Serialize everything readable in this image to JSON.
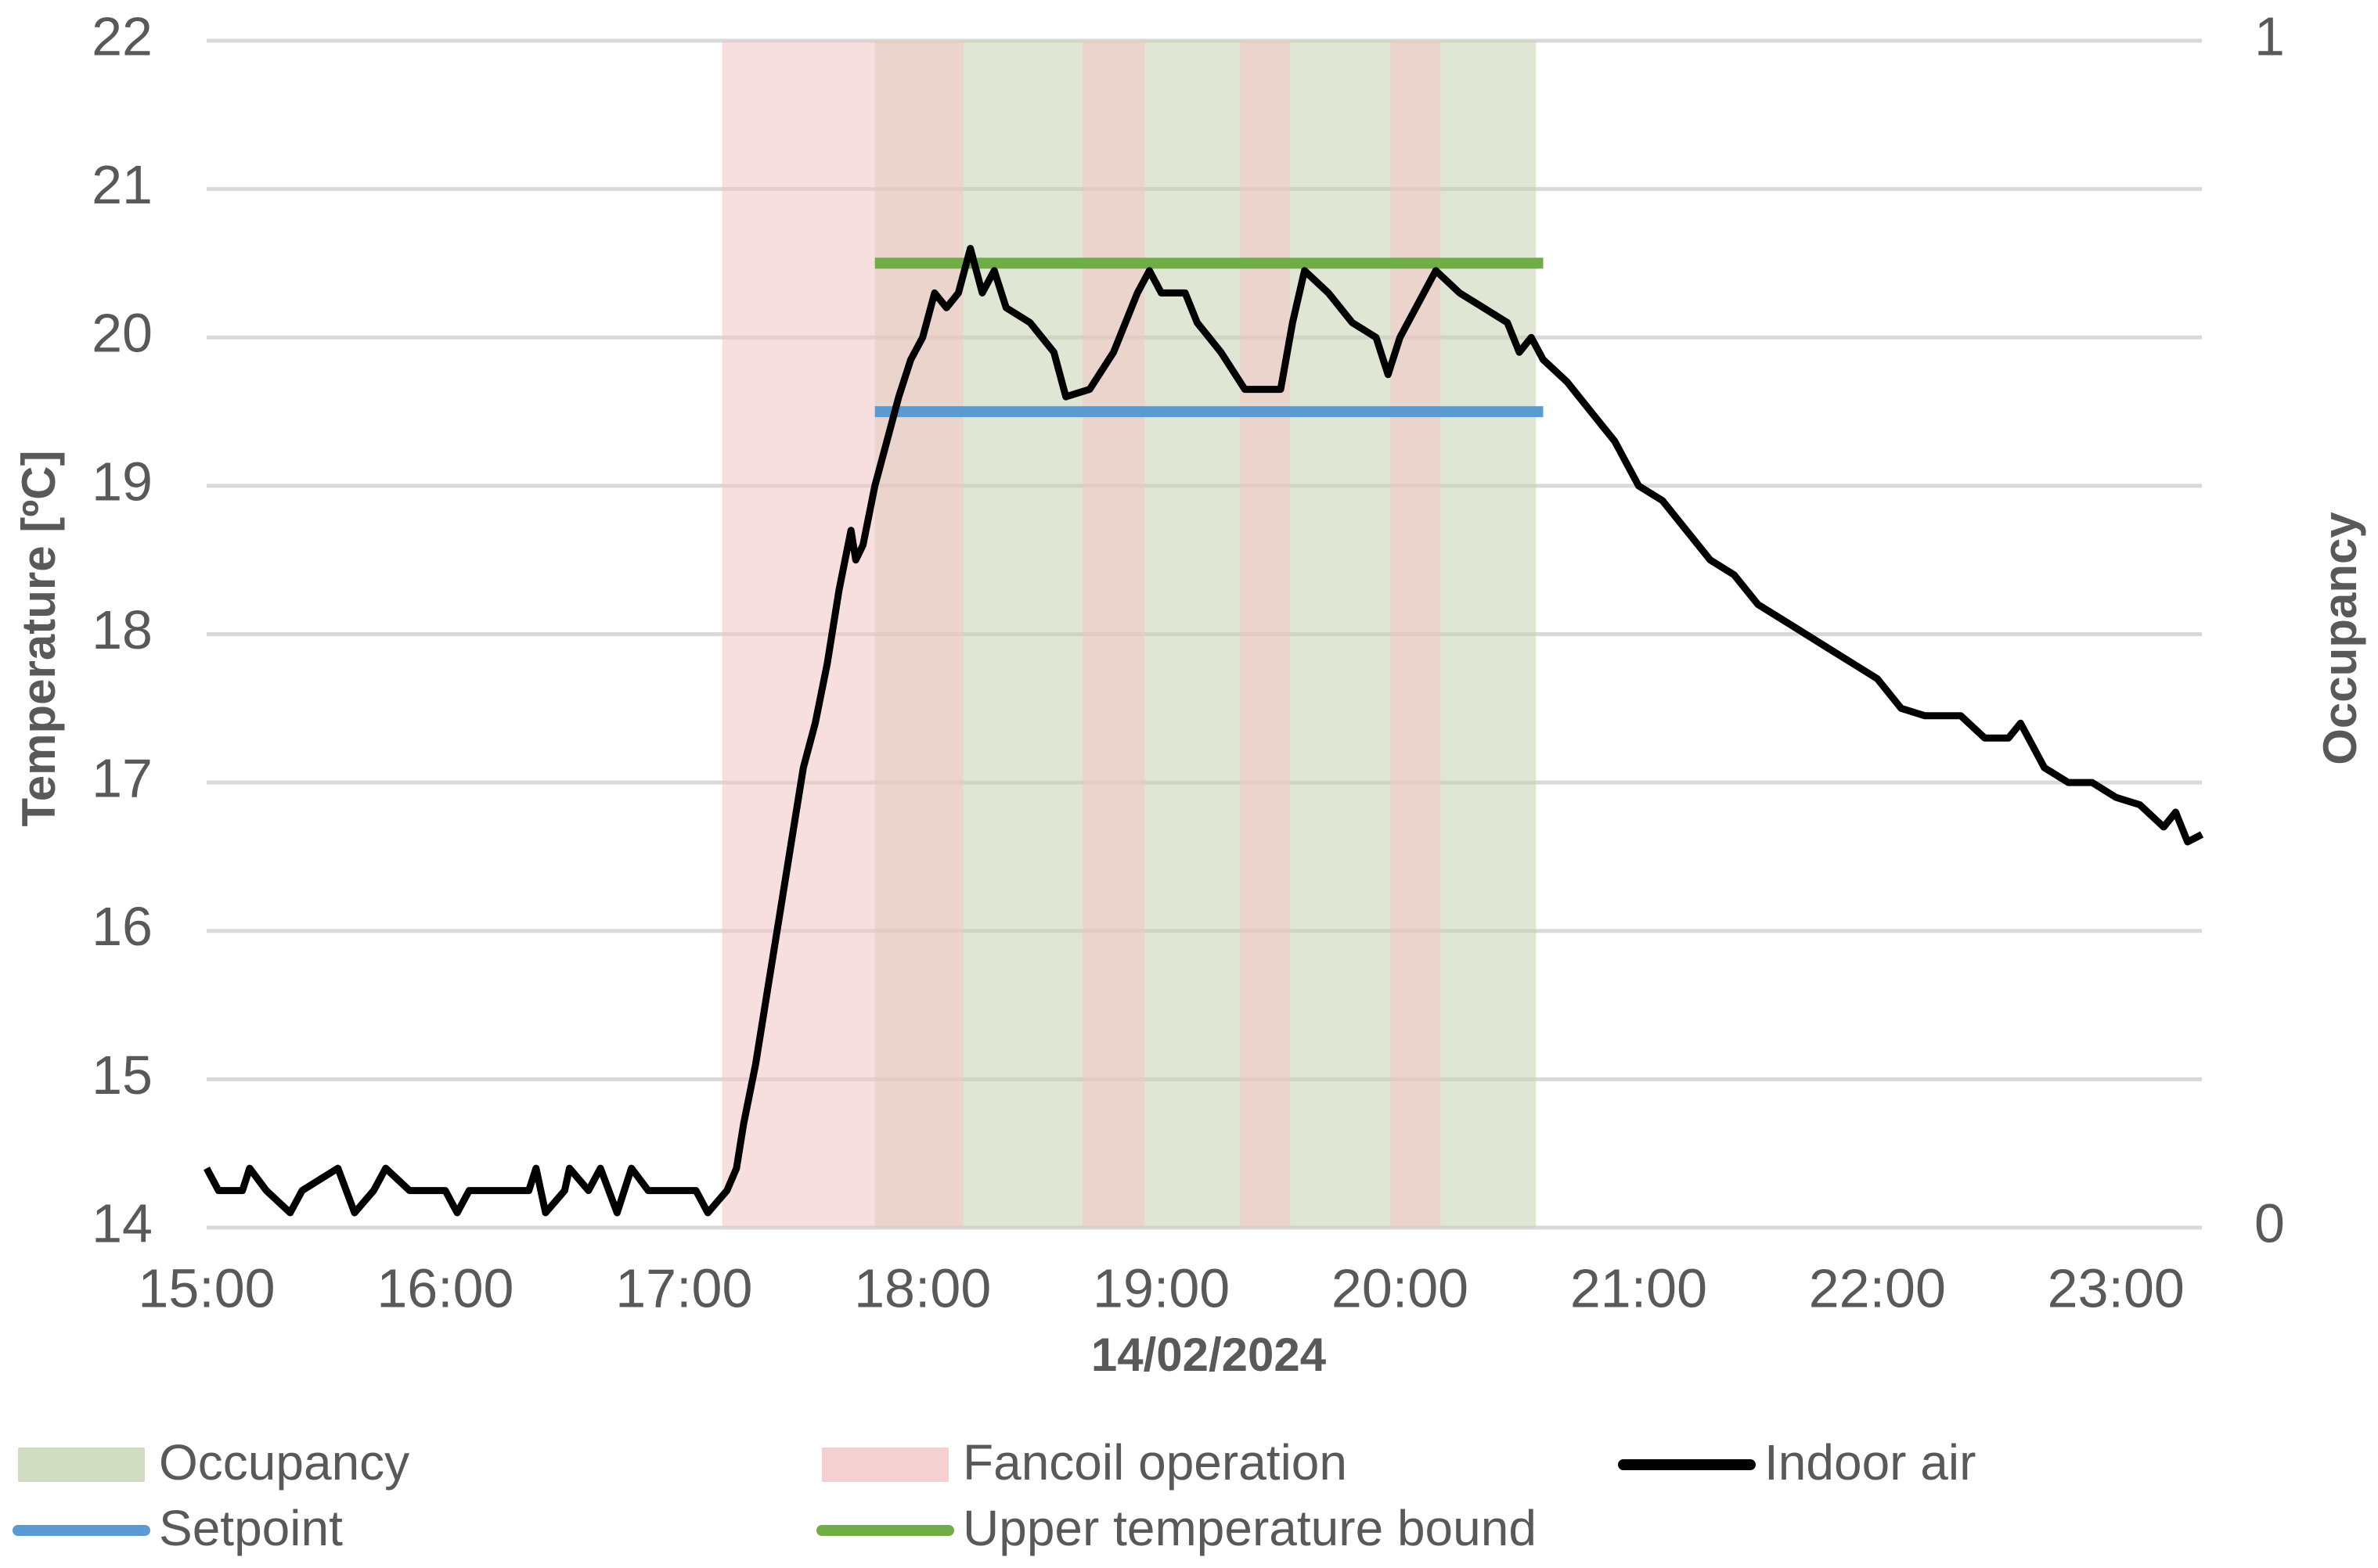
{
  "chart_data": {
    "type": "line",
    "xlabel": "14/02/2024",
    "ylabel": "Temperature [ºC]",
    "y2label": "Occupancy",
    "xlim": [
      15,
      23.36
    ],
    "xticks": [
      {
        "value": 15,
        "label": "15:00"
      },
      {
        "value": 16,
        "label": "16:00"
      },
      {
        "value": 17,
        "label": "17:00"
      },
      {
        "value": 18,
        "label": "18:00"
      },
      {
        "value": 19,
        "label": "19:00"
      },
      {
        "value": 20,
        "label": "20:00"
      },
      {
        "value": 21,
        "label": "21:00"
      },
      {
        "value": 22,
        "label": "22:00"
      },
      {
        "value": 23,
        "label": "23:00"
      }
    ],
    "ylim": [
      14,
      22
    ],
    "yticks": [
      14,
      15,
      16,
      17,
      18,
      19,
      20,
      21,
      22
    ],
    "y2lim": [
      0,
      1
    ],
    "y2ticks": [
      0,
      1
    ],
    "grid": true,
    "legend": "bottom",
    "series": [
      {
        "name": "Occupancy",
        "type": "step-area",
        "axis": "y2",
        "color": "#c5d3b0",
        "x": [
          17.8,
          20.57
        ],
        "values": [
          1,
          0
        ]
      },
      {
        "name": "Fancoil operation",
        "type": "step-area",
        "axis": "y2",
        "color": "#f2c4c4",
        "x": [
          17.16,
          18.17,
          18.67,
          18.93,
          19.33,
          19.54,
          19.96,
          20.17
        ],
        "values": [
          1,
          0,
          1,
          0,
          1,
          0,
          1,
          0
        ]
      },
      {
        "name": "Indoor air",
        "type": "line",
        "color": "#000000",
        "x": [
          15.0,
          15.05,
          15.15,
          15.18,
          15.25,
          15.35,
          15.4,
          15.55,
          15.62,
          15.7,
          15.75,
          15.85,
          16.0,
          16.05,
          16.1,
          16.35,
          16.38,
          16.42,
          16.5,
          16.52,
          16.6,
          16.65,
          16.72,
          16.78,
          16.85,
          17.05,
          17.1,
          17.18,
          17.22,
          17.25,
          17.3,
          17.35,
          17.4,
          17.45,
          17.5,
          17.55,
          17.6,
          17.65,
          17.7,
          17.72,
          17.75,
          17.8,
          17.85,
          17.9,
          17.95,
          18.0,
          18.05,
          18.1,
          18.15,
          18.2,
          18.25,
          18.3,
          18.35,
          18.45,
          18.55,
          18.6,
          18.7,
          18.8,
          18.9,
          18.95,
          19.0,
          19.1,
          19.15,
          19.25,
          19.35,
          19.5,
          19.55,
          19.6,
          19.7,
          19.8,
          19.9,
          19.95,
          20.0,
          20.1,
          20.15,
          20.25,
          20.35,
          20.45,
          20.5,
          20.55,
          20.6,
          20.7,
          20.8,
          20.9,
          21.0,
          21.1,
          21.2,
          21.3,
          21.4,
          21.5,
          21.6,
          21.7,
          21.8,
          21.9,
          22.0,
          22.1,
          22.2,
          22.35,
          22.45,
          22.55,
          22.6,
          22.7,
          22.8,
          22.9,
          23.0,
          23.1,
          23.2,
          23.25,
          23.3,
          23.36
        ],
        "values": [
          14.4,
          14.25,
          14.25,
          14.4,
          14.25,
          14.1,
          14.25,
          14.4,
          14.1,
          14.25,
          14.4,
          14.25,
          14.25,
          14.1,
          14.25,
          14.25,
          14.4,
          14.1,
          14.25,
          14.4,
          14.25,
          14.4,
          14.1,
          14.4,
          14.25,
          14.25,
          14.1,
          14.25,
          14.4,
          14.7,
          15.1,
          15.6,
          16.1,
          16.6,
          17.1,
          17.4,
          17.8,
          18.3,
          18.7,
          18.5,
          18.6,
          19.0,
          19.3,
          19.6,
          19.85,
          20.0,
          20.3,
          20.2,
          20.3,
          20.6,
          20.3,
          20.45,
          20.2,
          20.1,
          19.9,
          19.6,
          19.65,
          19.9,
          20.3,
          20.45,
          20.3,
          20.3,
          20.1,
          19.9,
          19.65,
          19.65,
          20.1,
          20.45,
          20.3,
          20.1,
          20.0,
          19.75,
          20.0,
          20.3,
          20.45,
          20.3,
          20.2,
          20.1,
          19.9,
          20.0,
          19.85,
          19.7,
          19.5,
          19.3,
          19.0,
          18.9,
          18.7,
          18.5,
          18.4,
          18.2,
          18.1,
          18.0,
          17.9,
          17.8,
          17.7,
          17.5,
          17.45,
          17.45,
          17.3,
          17.3,
          17.4,
          17.1,
          17.0,
          17.0,
          16.9,
          16.85,
          16.7,
          16.8,
          16.6,
          16.65
        ]
      },
      {
        "name": "Setpoint",
        "type": "line",
        "color": "#5b9bd5",
        "x": [
          17.8,
          20.6
        ],
        "values": [
          19.5,
          19.5
        ]
      },
      {
        "name": "Upper temperature bound",
        "type": "line",
        "color": "#70ad47",
        "x": [
          17.8,
          20.6
        ],
        "values": [
          20.5,
          20.5
        ]
      }
    ]
  }
}
